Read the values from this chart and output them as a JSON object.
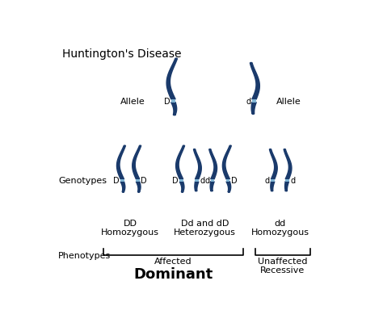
{
  "title": "Huntington's Disease",
  "bg_color": "#ffffff",
  "chrom_color": "#1a3a6b",
  "band_color": "#7fb3d3",
  "text_color": "#000000",
  "fig_width": 4.74,
  "fig_height": 4.06,
  "labels": {
    "allele_left": "Allele",
    "allele_left_letter": "D",
    "allele_right_letter": "d",
    "allele_right": "Allele",
    "genotypes": "Genotypes",
    "dd_top": "DD",
    "dd_bot": "Homozygous",
    "dddD_top": "Dd and dD",
    "dddD_bot": "Heterozygous",
    "dd2_top": "dd",
    "dd2_bot": "Homozygous",
    "phenotypes": "Phenotypes",
    "affected": "Affected",
    "dominant": "Dominant",
    "unaffected": "Unaffected",
    "recessive": "Recessive"
  }
}
